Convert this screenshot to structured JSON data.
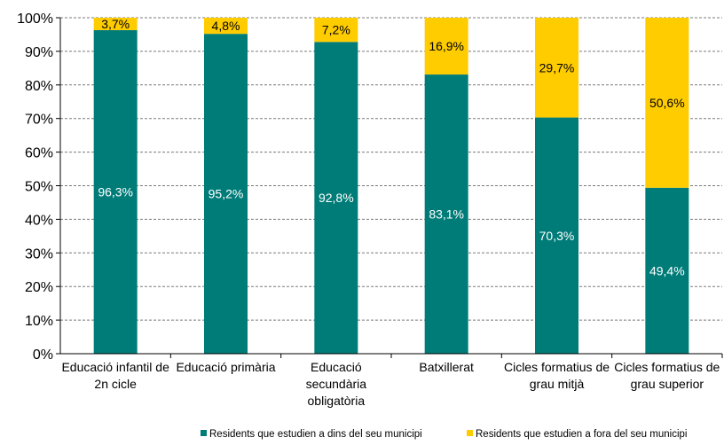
{
  "chart_data": {
    "type": "bar",
    "stacked": true,
    "percent": true,
    "categories": [
      [
        "Educació infantil de",
        "2n cicle"
      ],
      [
        "Educació primària"
      ],
      [
        "Educació",
        "secundària",
        "obligatòria"
      ],
      [
        "Batxillerat"
      ],
      [
        "Cicles formatius de",
        "grau mitjà"
      ],
      [
        "Cicles formatius de",
        "grau superior"
      ]
    ],
    "series": [
      {
        "name": "Residents que estudien a dins del seu municipi",
        "color": "#007C78",
        "label_color": "#ffffff",
        "values": [
          96.3,
          95.2,
          92.8,
          83.1,
          70.3,
          49.4
        ],
        "labels": [
          "96,3%",
          "95,2%",
          "92,8%",
          "83,1%",
          "70,3%",
          "49,4%"
        ]
      },
      {
        "name": "Residents que estudien a fora del seu municipi",
        "color": "#FFCC00",
        "label_color": "#000000",
        "values": [
          3.7,
          4.8,
          7.2,
          16.9,
          29.7,
          50.6
        ],
        "labels": [
          "3,7%",
          "4,8%",
          "7,2%",
          "16,9%",
          "29,7%",
          "50,6%"
        ]
      }
    ],
    "ylim": [
      0,
      100
    ],
    "yticks": [
      "0%",
      "10%",
      "20%",
      "30%",
      "40%",
      "50%",
      "60%",
      "70%",
      "80%",
      "90%",
      "100%"
    ],
    "grid": "dashed horizontal",
    "legend": "bottom"
  }
}
